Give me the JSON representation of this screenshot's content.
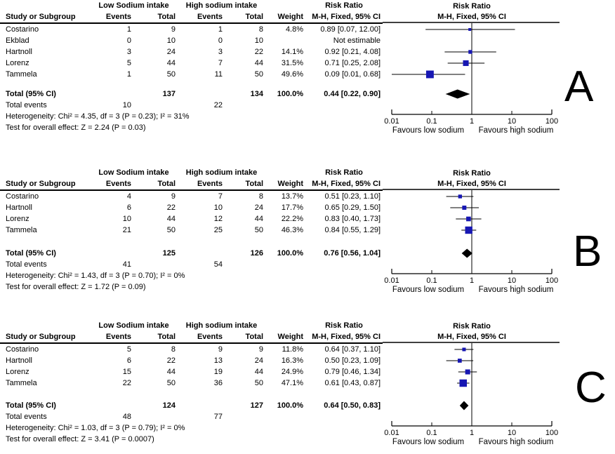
{
  "figure": {
    "background": "#ffffff"
  },
  "colors": {
    "marker_blue": "#1717b3",
    "summary_black": "#000000",
    "axis_black": "#000000"
  },
  "headers": {
    "group_low": "Low Sodium intake",
    "group_high": "High sodium intake",
    "group_rr": "Risk Ratio",
    "study": "Study or Subgroup",
    "events": "Events",
    "total": "Total",
    "weight": "Weight",
    "mh_fixed": "M-H, Fixed, 95% CI"
  },
  "chart_data": [
    {
      "type": "scatter",
      "subtype": "forest-plot",
      "panel_letter": "A",
      "title": "Risk Ratio",
      "subtitle": "M-H, Fixed, 95% CI",
      "x_scale": "log10",
      "x_range": [
        0.01,
        100
      ],
      "x_ticks": [
        0.01,
        0.1,
        1,
        10,
        100
      ],
      "favours_left": "Favours low sodium",
      "favours_right": "Favours high sodium",
      "studies": [
        {
          "name": "Costarino",
          "events1": 1,
          "total1": 9,
          "events2": 1,
          "total2": 8,
          "weight": "4.8%",
          "weight_pct": 4.8,
          "rr": 0.89,
          "ci_low": 0.07,
          "ci_high": 12.0,
          "rr_text": "0.89 [0.07, 12.00]"
        },
        {
          "name": "Ekblad",
          "events1": 0,
          "total1": 10,
          "events2": 0,
          "total2": 10,
          "weight": "",
          "weight_pct": null,
          "rr": null,
          "ci_low": null,
          "ci_high": null,
          "rr_text": "Not estimable"
        },
        {
          "name": "Hartnoll",
          "events1": 3,
          "total1": 24,
          "events2": 3,
          "total2": 22,
          "weight": "14.1%",
          "weight_pct": 14.1,
          "rr": 0.92,
          "ci_low": 0.21,
          "ci_high": 4.08,
          "rr_text": "0.92 [0.21, 4.08]"
        },
        {
          "name": "Lorenz",
          "events1": 5,
          "total1": 44,
          "events2": 7,
          "total2": 44,
          "weight": "31.5%",
          "weight_pct": 31.5,
          "rr": 0.71,
          "ci_low": 0.25,
          "ci_high": 2.08,
          "rr_text": "0.71 [0.25, 2.08]"
        },
        {
          "name": "Tammela",
          "events1": 1,
          "total1": 50,
          "events2": 11,
          "total2": 50,
          "weight": "49.6%",
          "weight_pct": 49.6,
          "rr": 0.09,
          "ci_low": 0.01,
          "ci_high": 0.68,
          "rr_text": "0.09 [0.01, 0.68]"
        }
      ],
      "total": {
        "label": "Total (95% CI)",
        "total1": 137,
        "total2": 134,
        "weight": "100.0%",
        "rr": 0.44,
        "ci_low": 0.22,
        "ci_high": 0.9,
        "rr_text": "0.44 [0.22, 0.90]"
      },
      "total_events": {
        "label": "Total events",
        "events1": 10,
        "events2": 22
      },
      "heterogeneity": "Heterogeneity: Chi² = 4.35, df = 3 (P = 0.23); I² = 31%",
      "overall_effect": "Test for overall effect: Z = 2.24 (P = 0.03)"
    },
    {
      "type": "scatter",
      "subtype": "forest-plot",
      "panel_letter": "B",
      "title": "Risk Ratio",
      "subtitle": "M-H, Fixed, 95% CI",
      "x_scale": "log10",
      "x_range": [
        0.01,
        100
      ],
      "x_ticks": [
        0.01,
        0.1,
        1,
        10,
        100
      ],
      "favours_left": "Favours low sodium",
      "favours_right": "Favours high sodium",
      "studies": [
        {
          "name": "Costarino",
          "events1": 4,
          "total1": 9,
          "events2": 7,
          "total2": 8,
          "weight": "13.7%",
          "weight_pct": 13.7,
          "rr": 0.51,
          "ci_low": 0.23,
          "ci_high": 1.1,
          "rr_text": "0.51 [0.23, 1.10]"
        },
        {
          "name": "Hartnoll",
          "events1": 6,
          "total1": 22,
          "events2": 10,
          "total2": 24,
          "weight": "17.7%",
          "weight_pct": 17.7,
          "rr": 0.65,
          "ci_low": 0.29,
          "ci_high": 1.5,
          "rr_text": "0.65 [0.29, 1.50]"
        },
        {
          "name": "Lorenz",
          "events1": 10,
          "total1": 44,
          "events2": 12,
          "total2": 44,
          "weight": "22.2%",
          "weight_pct": 22.2,
          "rr": 0.83,
          "ci_low": 0.4,
          "ci_high": 1.73,
          "rr_text": "0.83 [0.40, 1.73]"
        },
        {
          "name": "Tammela",
          "events1": 21,
          "total1": 50,
          "events2": 25,
          "total2": 50,
          "weight": "46.3%",
          "weight_pct": 46.3,
          "rr": 0.84,
          "ci_low": 0.55,
          "ci_high": 1.29,
          "rr_text": "0.84 [0.55, 1.29]"
        }
      ],
      "total": {
        "label": "Total (95% CI)",
        "total1": 125,
        "total2": 126,
        "weight": "100.0%",
        "rr": 0.76,
        "ci_low": 0.56,
        "ci_high": 1.04,
        "rr_text": "0.76 [0.56, 1.04]"
      },
      "total_events": {
        "label": "Total events",
        "events1": 41,
        "events2": 54
      },
      "heterogeneity": "Heterogeneity: Chi² = 1.43, df = 3 (P = 0.70); I² = 0%",
      "overall_effect": "Test for overall effect: Z = 1.72 (P = 0.09)"
    },
    {
      "type": "scatter",
      "subtype": "forest-plot",
      "panel_letter": "C",
      "title": "Risk Ratio",
      "subtitle": "M-H, Fixed, 95% CI",
      "x_scale": "log10",
      "x_range": [
        0.01,
        100
      ],
      "x_ticks": [
        0.01,
        0.1,
        1,
        10,
        100
      ],
      "favours_left": "Favours low sodium",
      "favours_right": "Favours high sodium",
      "studies": [
        {
          "name": "Costarino",
          "events1": 5,
          "total1": 8,
          "events2": 9,
          "total2": 9,
          "weight": "11.8%",
          "weight_pct": 11.8,
          "rr": 0.64,
          "ci_low": 0.37,
          "ci_high": 1.1,
          "rr_text": "0.64 [0.37, 1.10]"
        },
        {
          "name": "Hartnoll",
          "events1": 6,
          "total1": 22,
          "events2": 13,
          "total2": 24,
          "weight": "16.3%",
          "weight_pct": 16.3,
          "rr": 0.5,
          "ci_low": 0.23,
          "ci_high": 1.09,
          "rr_text": "0.50 [0.23, 1.09]"
        },
        {
          "name": "Lorenz",
          "events1": 15,
          "total1": 44,
          "events2": 19,
          "total2": 44,
          "weight": "24.9%",
          "weight_pct": 24.9,
          "rr": 0.79,
          "ci_low": 0.46,
          "ci_high": 1.34,
          "rr_text": "0.79 [0.46, 1.34]"
        },
        {
          "name": "Tammela",
          "events1": 22,
          "total1": 50,
          "events2": 36,
          "total2": 50,
          "weight": "47.1%",
          "weight_pct": 47.1,
          "rr": 0.61,
          "ci_low": 0.43,
          "ci_high": 0.87,
          "rr_text": "0.61 [0.43, 0.87]"
        }
      ],
      "total": {
        "label": "Total (95% CI)",
        "total1": 124,
        "total2": 127,
        "weight": "100.0%",
        "rr": 0.64,
        "ci_low": 0.5,
        "ci_high": 0.83,
        "rr_text": "0.64 [0.50, 0.83]"
      },
      "total_events": {
        "label": "Total events",
        "events1": 48,
        "events2": 77
      },
      "heterogeneity": "Heterogeneity: Chi² = 1.03, df = 3 (P = 0.79); I² = 0%",
      "overall_effect": "Test for overall effect: Z = 3.41 (P = 0.0007)"
    }
  ]
}
